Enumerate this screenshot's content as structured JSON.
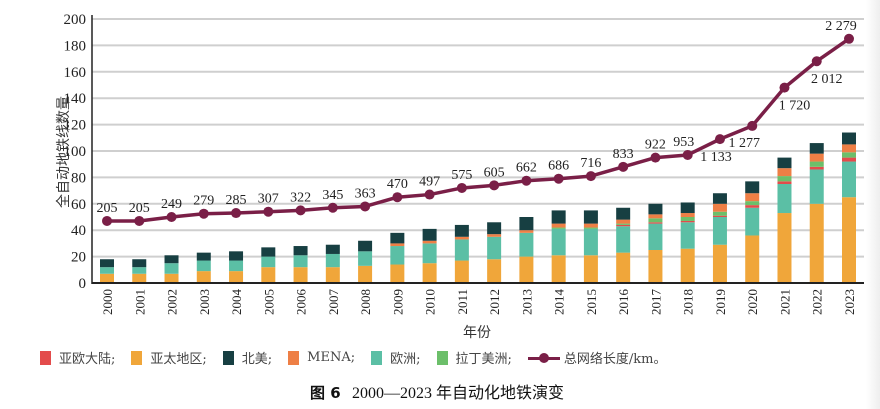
{
  "chart_data": {
    "type": "bar",
    "stacked": true,
    "title": "",
    "caption": {
      "figure_label": "图 6",
      "text": "2000—2023 年自动化地铁演变"
    },
    "xlabel": "年份",
    "ylabel": "全自动地铁线数量",
    "ylim": [
      0,
      200
    ],
    "yticks": [
      0,
      20,
      40,
      60,
      80,
      100,
      120,
      140,
      160,
      180,
      200
    ],
    "grid": true,
    "legend_position": "bottom",
    "categories": [
      "2000",
      "2001",
      "2002",
      "2003",
      "2004",
      "2005",
      "2006",
      "2007",
      "2008",
      "2009",
      "2010",
      "2011",
      "2012",
      "2013",
      "2014",
      "2015",
      "2016",
      "2017",
      "2018",
      "2019",
      "2020",
      "2021",
      "2022",
      "2023"
    ],
    "series": [
      {
        "name": "亚太地区",
        "color": "#f0a63a",
        "values": [
          7,
          7,
          7,
          9,
          9,
          12,
          12,
          12,
          13,
          14,
          15,
          17,
          18,
          20,
          21,
          21,
          23,
          25,
          26,
          29,
          36,
          53,
          60,
          65
        ]
      },
      {
        "name": "欧洲",
        "color": "#5bbfa5",
        "values": [
          5,
          5,
          8,
          8,
          8,
          8,
          9,
          10,
          11,
          14,
          15,
          16,
          17,
          18,
          20,
          20,
          20,
          20,
          20,
          21,
          21,
          22,
          26,
          27
        ]
      },
      {
        "name": "亚欧大陆",
        "color": "#e34b4b",
        "values": [
          0,
          0,
          0,
          0,
          0,
          0,
          0,
          0,
          0,
          0,
          0,
          0,
          0,
          0,
          0,
          0,
          1,
          1,
          1,
          1,
          2,
          2,
          2,
          3
        ]
      },
      {
        "name": "拉丁美洲",
        "color": "#6cbf6a",
        "values": [
          0,
          0,
          0,
          0,
          0,
          0,
          0,
          0,
          0,
          0,
          0,
          0,
          0,
          0,
          1,
          1,
          1,
          3,
          3,
          3,
          3,
          4,
          4,
          4
        ]
      },
      {
        "name": "MENA",
        "color": "#ee7f45",
        "values": [
          0,
          0,
          0,
          0,
          0,
          0,
          0,
          0,
          0,
          2,
          2,
          2,
          2,
          2,
          3,
          3,
          3,
          3,
          3,
          6,
          6,
          6,
          6,
          6
        ]
      },
      {
        "name": "北美",
        "color": "#173f42",
        "values": [
          6,
          6,
          6,
          6,
          7,
          7,
          7,
          7,
          8,
          8,
          9,
          9,
          9,
          10,
          10,
          10,
          9,
          8,
          8,
          8,
          9,
          8,
          8,
          9
        ]
      }
    ],
    "line": {
      "name": "总网络长度/km",
      "color": "#7a1f47",
      "km_values": [
        205,
        205,
        249,
        279,
        285,
        307,
        322,
        345,
        363,
        470,
        497,
        575,
        605,
        662,
        686,
        716,
        833,
        922,
        953,
        1133,
        1277,
        1720,
        2012,
        2279
      ],
      "labels": [
        "205",
        "205",
        "249",
        "279",
        "285",
        "307",
        "322",
        "345",
        "363",
        "470",
        "497",
        "575",
        "605",
        "662",
        "686",
        "716",
        "833",
        "922",
        "953",
        "1 133",
        "1 277",
        "1 720",
        "2 012",
        "2 279"
      ],
      "plotted_axis_values": [
        47,
        47,
        50,
        52.5,
        53,
        54,
        55,
        57,
        58,
        65,
        67,
        72,
        74,
        77.5,
        79,
        81,
        88,
        95,
        97,
        109,
        119,
        148,
        168,
        185
      ]
    },
    "legend": [
      {
        "label": "亚欧大陆;",
        "color": "#e34b4b",
        "kind": "swatch"
      },
      {
        "label": "亚太地区;",
        "color": "#f0a63a",
        "kind": "swatch"
      },
      {
        "label": "北美;",
        "color": "#173f42",
        "kind": "swatch"
      },
      {
        "label": "MENA;",
        "color": "#ee7f45",
        "kind": "swatch"
      },
      {
        "label": "欧洲;",
        "color": "#5bbfa5",
        "kind": "swatch"
      },
      {
        "label": "拉丁美洲;",
        "color": "#6cbf6a",
        "kind": "swatch"
      },
      {
        "label": "总网络长度/km。",
        "color": "#7a1f47",
        "kind": "line"
      }
    ]
  }
}
